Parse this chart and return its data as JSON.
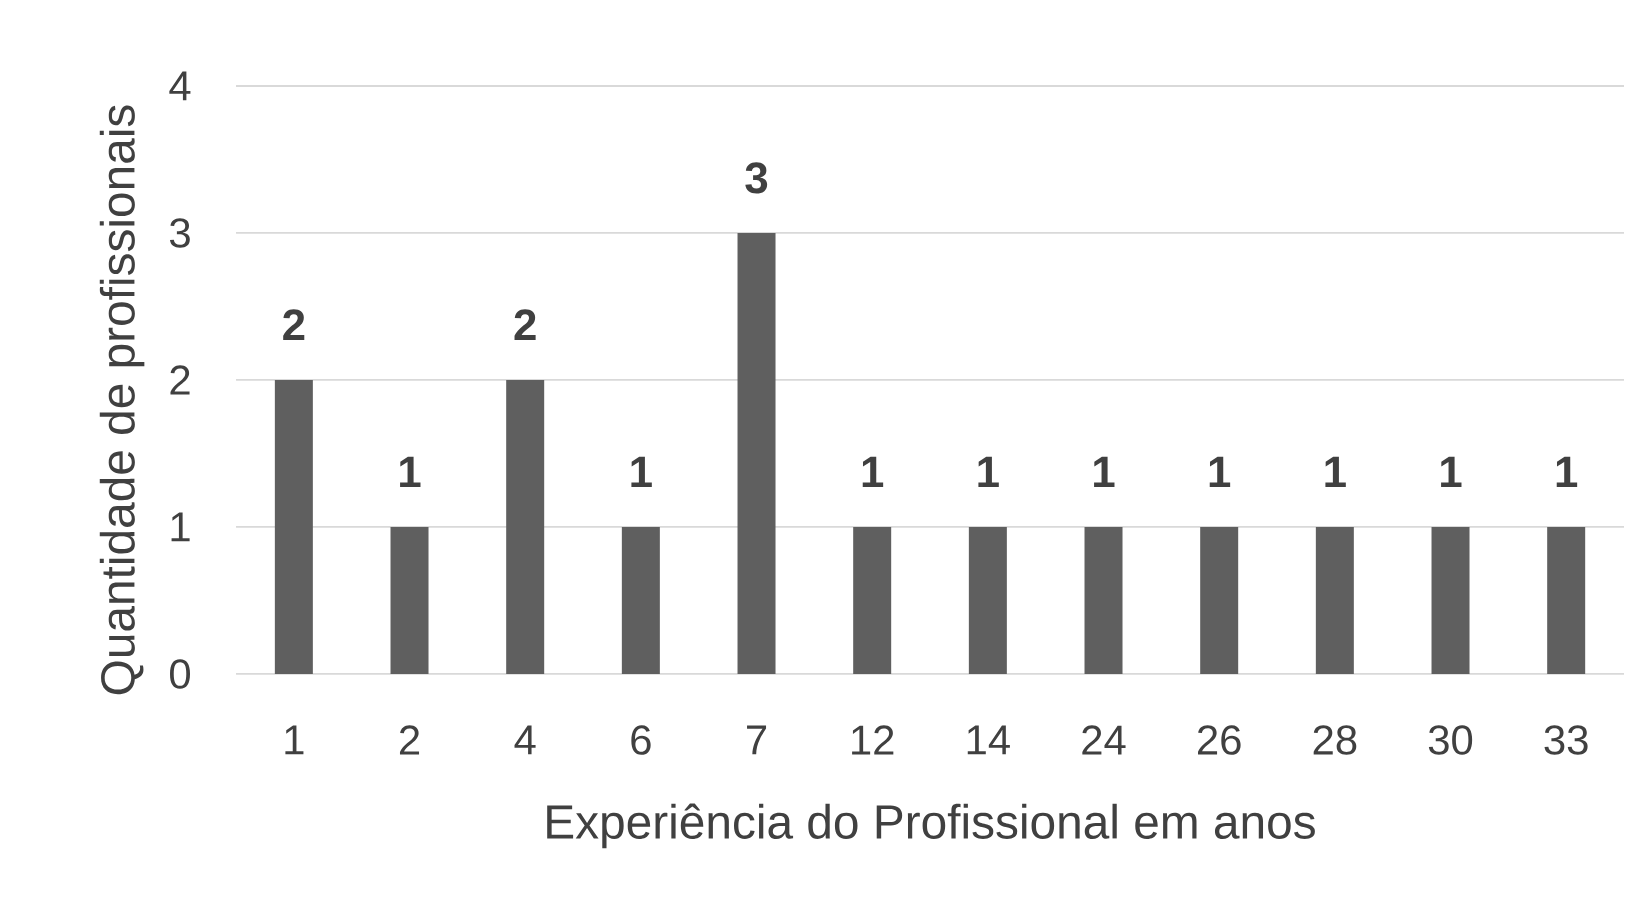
{
  "chart_data": {
    "type": "bar",
    "xlabel": "Experiência do Profissional em anos",
    "ylabel": "Quantidade de profissionais",
    "categories": [
      "1",
      "2",
      "4",
      "6",
      "7",
      "12",
      "14",
      "24",
      "26",
      "28",
      "30",
      "33"
    ],
    "values": [
      2,
      1,
      2,
      1,
      3,
      1,
      1,
      1,
      1,
      1,
      1,
      1
    ],
    "color": "#5f5f5f",
    "ylim": [
      0,
      4
    ],
    "yticks": [
      0,
      1,
      2,
      3,
      4
    ],
    "grid": "y",
    "data_labels": true
  }
}
